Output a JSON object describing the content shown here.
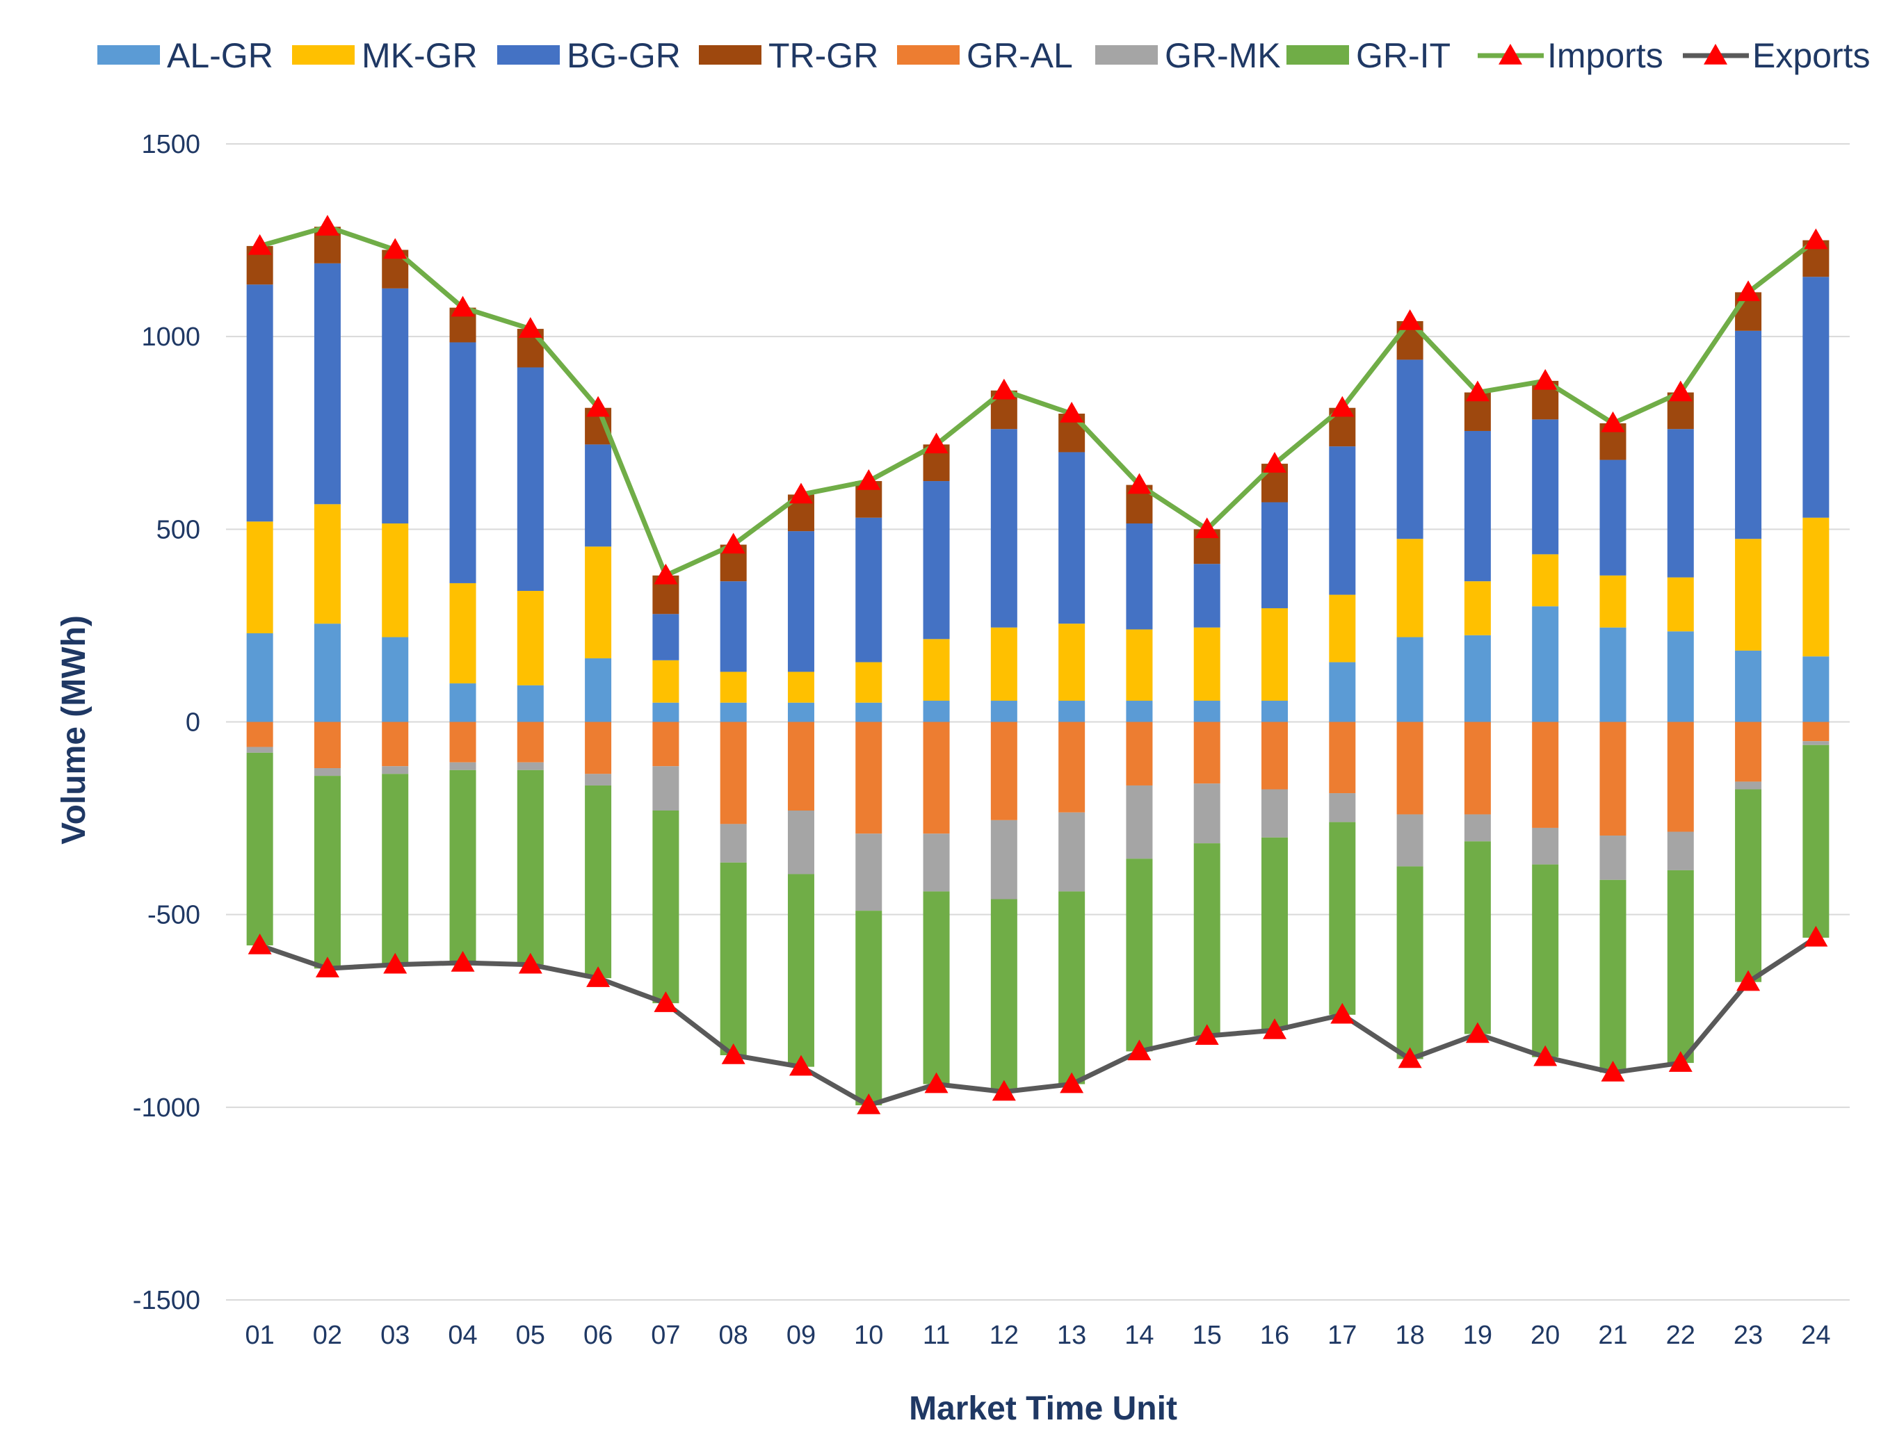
{
  "chart_data": {
    "type": "bar",
    "stacked": true,
    "title": "",
    "xlabel": "Market Time Unit",
    "ylabel": "Volume (MWh)",
    "ylim": [
      -1500,
      1500
    ],
    "yticks": [
      1500,
      1000,
      500,
      0,
      -500,
      -1000,
      -1500
    ],
    "grid": true,
    "legend_position": "top",
    "categories": [
      "01",
      "02",
      "03",
      "04",
      "05",
      "06",
      "07",
      "08",
      "09",
      "10",
      "11",
      "12",
      "13",
      "14",
      "15",
      "16",
      "17",
      "18",
      "19",
      "20",
      "21",
      "22",
      "23",
      "24"
    ],
    "series": [
      {
        "name": "AL-GR",
        "kind": "bar",
        "color": "#5b9bd5",
        "values": [
          230,
          255,
          220,
          100,
          95,
          165,
          50,
          50,
          50,
          50,
          55,
          55,
          55,
          55,
          55,
          55,
          155,
          220,
          225,
          300,
          245,
          235,
          185,
          170
        ]
      },
      {
        "name": "MK-GR",
        "kind": "bar",
        "color": "#ffc000",
        "values": [
          290,
          310,
          295,
          260,
          245,
          290,
          110,
          80,
          80,
          105,
          160,
          190,
          200,
          185,
          190,
          240,
          175,
          255,
          140,
          135,
          135,
          140,
          290,
          360
        ]
      },
      {
        "name": "BG-GR",
        "kind": "bar",
        "color": "#4472c4",
        "values": [
          615,
          625,
          610,
          625,
          580,
          265,
          120,
          235,
          365,
          375,
          410,
          515,
          445,
          275,
          165,
          275,
          385,
          465,
          390,
          350,
          300,
          385,
          540,
          625
        ]
      },
      {
        "name": "TR-GR",
        "kind": "bar",
        "color": "#9e480e",
        "values": [
          100,
          95,
          100,
          90,
          100,
          95,
          100,
          95,
          95,
          95,
          95,
          100,
          100,
          100,
          90,
          100,
          100,
          100,
          100,
          100,
          95,
          95,
          100,
          95
        ]
      },
      {
        "name": "GR-AL",
        "kind": "bar",
        "color": "#ed7d31",
        "values": [
          -65,
          -120,
          -115,
          -105,
          -105,
          -135,
          -115,
          -265,
          -230,
          -290,
          -290,
          -255,
          -235,
          -165,
          -160,
          -175,
          -185,
          -240,
          -240,
          -275,
          -295,
          -285,
          -155,
          -50
        ]
      },
      {
        "name": "GR-MK",
        "kind": "bar",
        "color": "#a5a5a5",
        "values": [
          -15,
          -20,
          -20,
          -20,
          -20,
          -30,
          -115,
          -100,
          -165,
          -200,
          -150,
          -205,
          -205,
          -190,
          -155,
          -125,
          -75,
          -135,
          -70,
          -95,
          -115,
          -100,
          -20,
          -10
        ]
      },
      {
        "name": "GR-IT",
        "kind": "bar",
        "color": "#70ad47",
        "values": [
          -500,
          -500,
          -495,
          -500,
          -505,
          -500,
          -500,
          -500,
          -500,
          -505,
          -500,
          -500,
          -500,
          -500,
          -500,
          -500,
          -500,
          -500,
          -500,
          -500,
          -500,
          -500,
          -500,
          -500
        ]
      },
      {
        "name": "Imports",
        "kind": "line",
        "color": "#70ad47",
        "marker_color": "#ff0000",
        "values": [
          1235,
          1285,
          1225,
          1075,
          1020,
          815,
          380,
          460,
          590,
          625,
          720,
          860,
          800,
          615,
          500,
          670,
          815,
          1040,
          855,
          885,
          775,
          855,
          1115,
          1250
        ]
      },
      {
        "name": "Exports",
        "kind": "line",
        "color": "#595959",
        "marker_color": "#ff0000",
        "values": [
          -580,
          -640,
          -630,
          -625,
          -630,
          -665,
          -730,
          -865,
          -895,
          -995,
          -940,
          -960,
          -940,
          -855,
          -815,
          -800,
          -760,
          -875,
          -810,
          -870,
          -910,
          -885,
          -675,
          -560
        ]
      }
    ]
  }
}
